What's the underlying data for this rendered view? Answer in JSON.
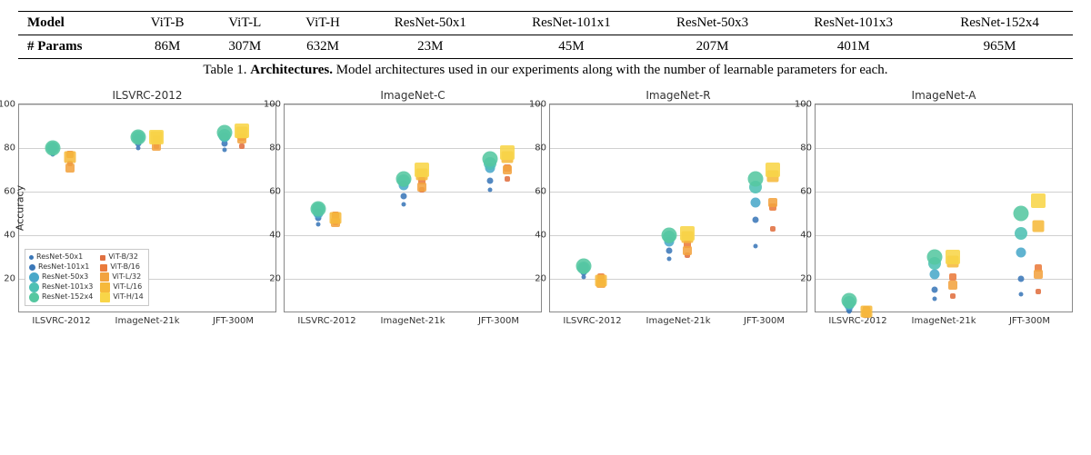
{
  "table": {
    "header": [
      "Model",
      "ViT-B",
      "ViT-L",
      "ViT-H",
      "ResNet-50x1",
      "ResNet-101x1",
      "ResNet-50x3",
      "ResNet-101x3",
      "ResNet-152x4"
    ],
    "params": [
      "# Params",
      "86M",
      "307M",
      "632M",
      "23M",
      "45M",
      "207M",
      "401M",
      "965M"
    ],
    "caption_prefix": "Table 1. ",
    "caption_bold": "Architectures.",
    "caption_rest": " Model architectures used in our experiments along with the number of learnable parameters for each."
  },
  "chart_common": {
    "ylabel": "Accuracy",
    "yticks": [
      20,
      40,
      60,
      80,
      100
    ],
    "ylim": [
      5,
      100
    ],
    "xcats": [
      "ILSVRC-2012",
      "ImageNet-21k",
      "JFT-300M"
    ],
    "grid_color": "#d0d0d0",
    "bg": "#ffffff",
    "axis_color": "#888888",
    "title_fontsize": 12,
    "tick_fontsize": 10,
    "label_fontsize": 11
  },
  "models": [
    {
      "name": "ResNet-50x1",
      "shape": "circle",
      "size": 5,
      "color": "#3b78b8"
    },
    {
      "name": "ResNet-101x1",
      "shape": "circle",
      "size": 7,
      "color": "#3b78b8"
    },
    {
      "name": "ResNet-50x3",
      "shape": "circle",
      "size": 11,
      "color": "#4aa8c9"
    },
    {
      "name": "ResNet-101x3",
      "shape": "circle",
      "size": 14,
      "color": "#4dc0b3"
    },
    {
      "name": "ResNet-152x4",
      "shape": "circle",
      "size": 17,
      "color": "#55c7a0"
    },
    {
      "name": "ViT-B/32",
      "shape": "square",
      "size": 6,
      "color": "#e07040"
    },
    {
      "name": "ViT-B/16",
      "shape": "square",
      "size": 8,
      "color": "#ea7b3c"
    },
    {
      "name": "ViT-L/32",
      "shape": "square",
      "size": 10,
      "color": "#f2a340"
    },
    {
      "name": "ViT-L/16",
      "shape": "square",
      "size": 13,
      "color": "#f6b93b"
    },
    {
      "name": "ViT-H/14",
      "shape": "square",
      "size": 16,
      "color": "#f8d548"
    }
  ],
  "panels": [
    {
      "title": "ILSVRC-2012",
      "show_legend": true,
      "show_ylabel": true,
      "data": {
        "ResNet-50x1": [
          77,
          80,
          79
        ],
        "ResNet-101x1": [
          79,
          82,
          82
        ],
        "ResNet-50x3": [
          80,
          84,
          85
        ],
        "ResNet-101x3": [
          80,
          85,
          86
        ],
        "ResNet-152x4": [
          80,
          85,
          87
        ],
        "ViT-B/32": [
          73,
          81,
          81
        ],
        "ViT-B/16": [
          77,
          84,
          85
        ],
        "ViT-L/32": [
          71,
          81,
          84
        ],
        "ViT-L/16": [
          76,
          85,
          87
        ],
        "ViT-H/14": [
          null,
          85,
          88
        ]
      }
    },
    {
      "title": "ImageNet-C",
      "show_legend": false,
      "show_ylabel": false,
      "data": {
        "ResNet-50x1": [
          45,
          54,
          61
        ],
        "ResNet-101x1": [
          48,
          58,
          65
        ],
        "ResNet-50x3": [
          50,
          63,
          71
        ],
        "ResNet-101x3": [
          52,
          65,
          73
        ],
        "ResNet-152x4": [
          52,
          66,
          75
        ],
        "ViT-B/32": [
          46,
          61,
          66
        ],
        "ViT-B/16": [
          49,
          65,
          71
        ],
        "ViT-L/32": [
          46,
          62,
          70
        ],
        "ViT-L/16": [
          48,
          68,
          76
        ],
        "ViT-H/14": [
          null,
          70,
          78
        ]
      }
    },
    {
      "title": "ImageNet-R",
      "show_legend": false,
      "show_ylabel": false,
      "data": {
        "ResNet-50x1": [
          21,
          29,
          35
        ],
        "ResNet-101x1": [
          23,
          33,
          47
        ],
        "ResNet-50x3": [
          25,
          37,
          55
        ],
        "ResNet-101x3": [
          25,
          39,
          62
        ],
        "ResNet-152x4": [
          26,
          40,
          66
        ],
        "ViT-B/32": [
          19,
          31,
          43
        ],
        "ViT-B/16": [
          21,
          36,
          53
        ],
        "ViT-L/32": [
          18,
          33,
          55
        ],
        "ViT-L/16": [
          19,
          39,
          67
        ],
        "ViT-H/14": [
          null,
          41,
          70
        ]
      }
    },
    {
      "title": "ImageNet-A",
      "show_legend": false,
      "show_ylabel": false,
      "data": {
        "ResNet-50x1": [
          5,
          11,
          13
        ],
        "ResNet-101x1": [
          6,
          15,
          20
        ],
        "ResNet-50x3": [
          8,
          22,
          32
        ],
        "ResNet-101x3": [
          9,
          27,
          41
        ],
        "ResNet-152x4": [
          10,
          30,
          50
        ],
        "ViT-B/32": [
          4,
          12,
          14
        ],
        "ViT-B/16": [
          6,
          21,
          25
        ],
        "ViT-L/32": [
          4,
          17,
          22
        ],
        "ViT-L/16": [
          5,
          28,
          44
        ],
        "ViT-H/14": [
          null,
          30,
          56
        ]
      }
    }
  ]
}
